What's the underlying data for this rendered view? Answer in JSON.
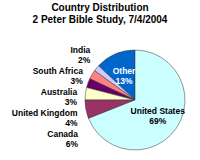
{
  "chart_data": {
    "type": "pie",
    "title": "Country Distribution",
    "subtitle": "2 Peter Bible Study, 7/4/2004",
    "categories": [
      "Other",
      "India",
      "South Africa",
      "Australia",
      "United Kingdom",
      "Canada",
      "United States"
    ],
    "values": [
      13,
      2,
      3,
      3,
      4,
      6,
      69
    ],
    "value_labels": [
      "13%",
      "2%",
      "3%",
      "3%",
      "4%",
      "6%",
      "69%"
    ],
    "colors": [
      "#0066cc",
      "#ccccff",
      "#ff8080",
      "#660066",
      "#ffffcc",
      "#993366",
      "#ccffff"
    ],
    "data_labels": true
  }
}
